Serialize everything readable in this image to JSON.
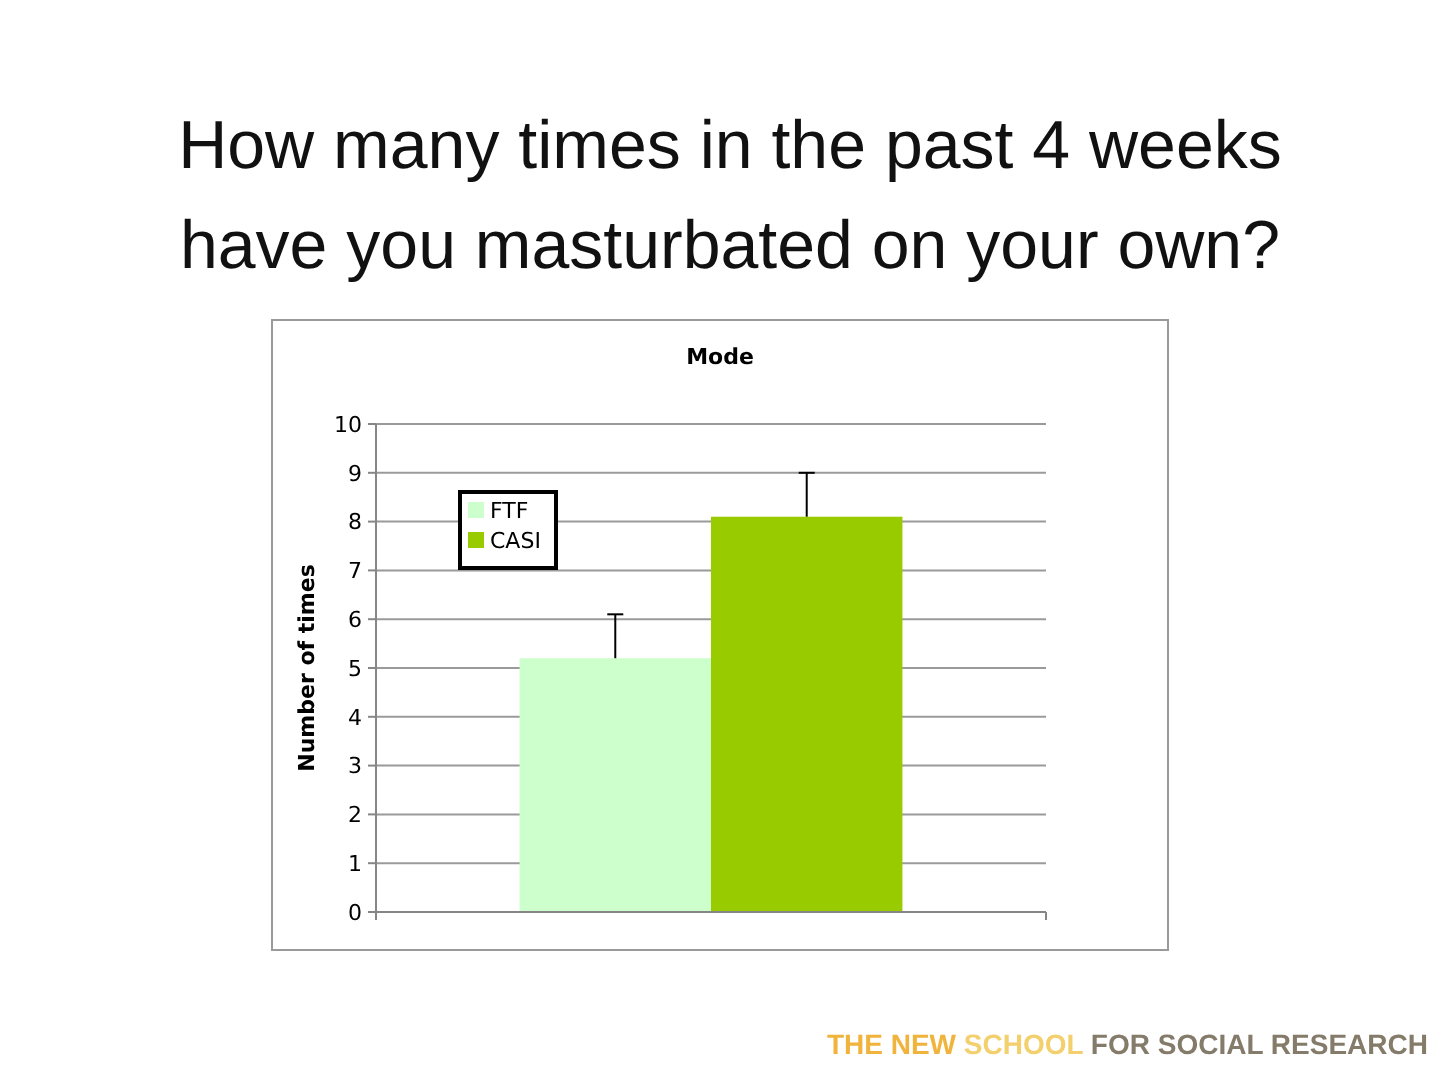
{
  "chart_data": {
    "type": "bar",
    "title": "How many times in the past 4 weeks have you masturbated on your own?",
    "subtitle": "Mode",
    "ylabel": "Number of times",
    "categories": [
      null
    ],
    "series": [
      {
        "name": "FTF",
        "color": "#ccffcc",
        "values": [
          5.2
        ],
        "errors": [
          [
            5.2,
            6.1
          ]
        ]
      },
      {
        "name": "CASI",
        "color": "#99cc00",
        "values": [
          8.1
        ],
        "errors": [
          [
            8.1,
            9
          ]
        ]
      }
    ],
    "ylim": [
      0,
      10
    ],
    "yticks": [
      0,
      1,
      2,
      3,
      4,
      5,
      6,
      7,
      8,
      9,
      10
    ],
    "grid": "y",
    "legend": "top left",
    "annotations": [
      "THE NEW SCHOOL FOR SOCIAL RESEARCH"
    ]
  }
}
